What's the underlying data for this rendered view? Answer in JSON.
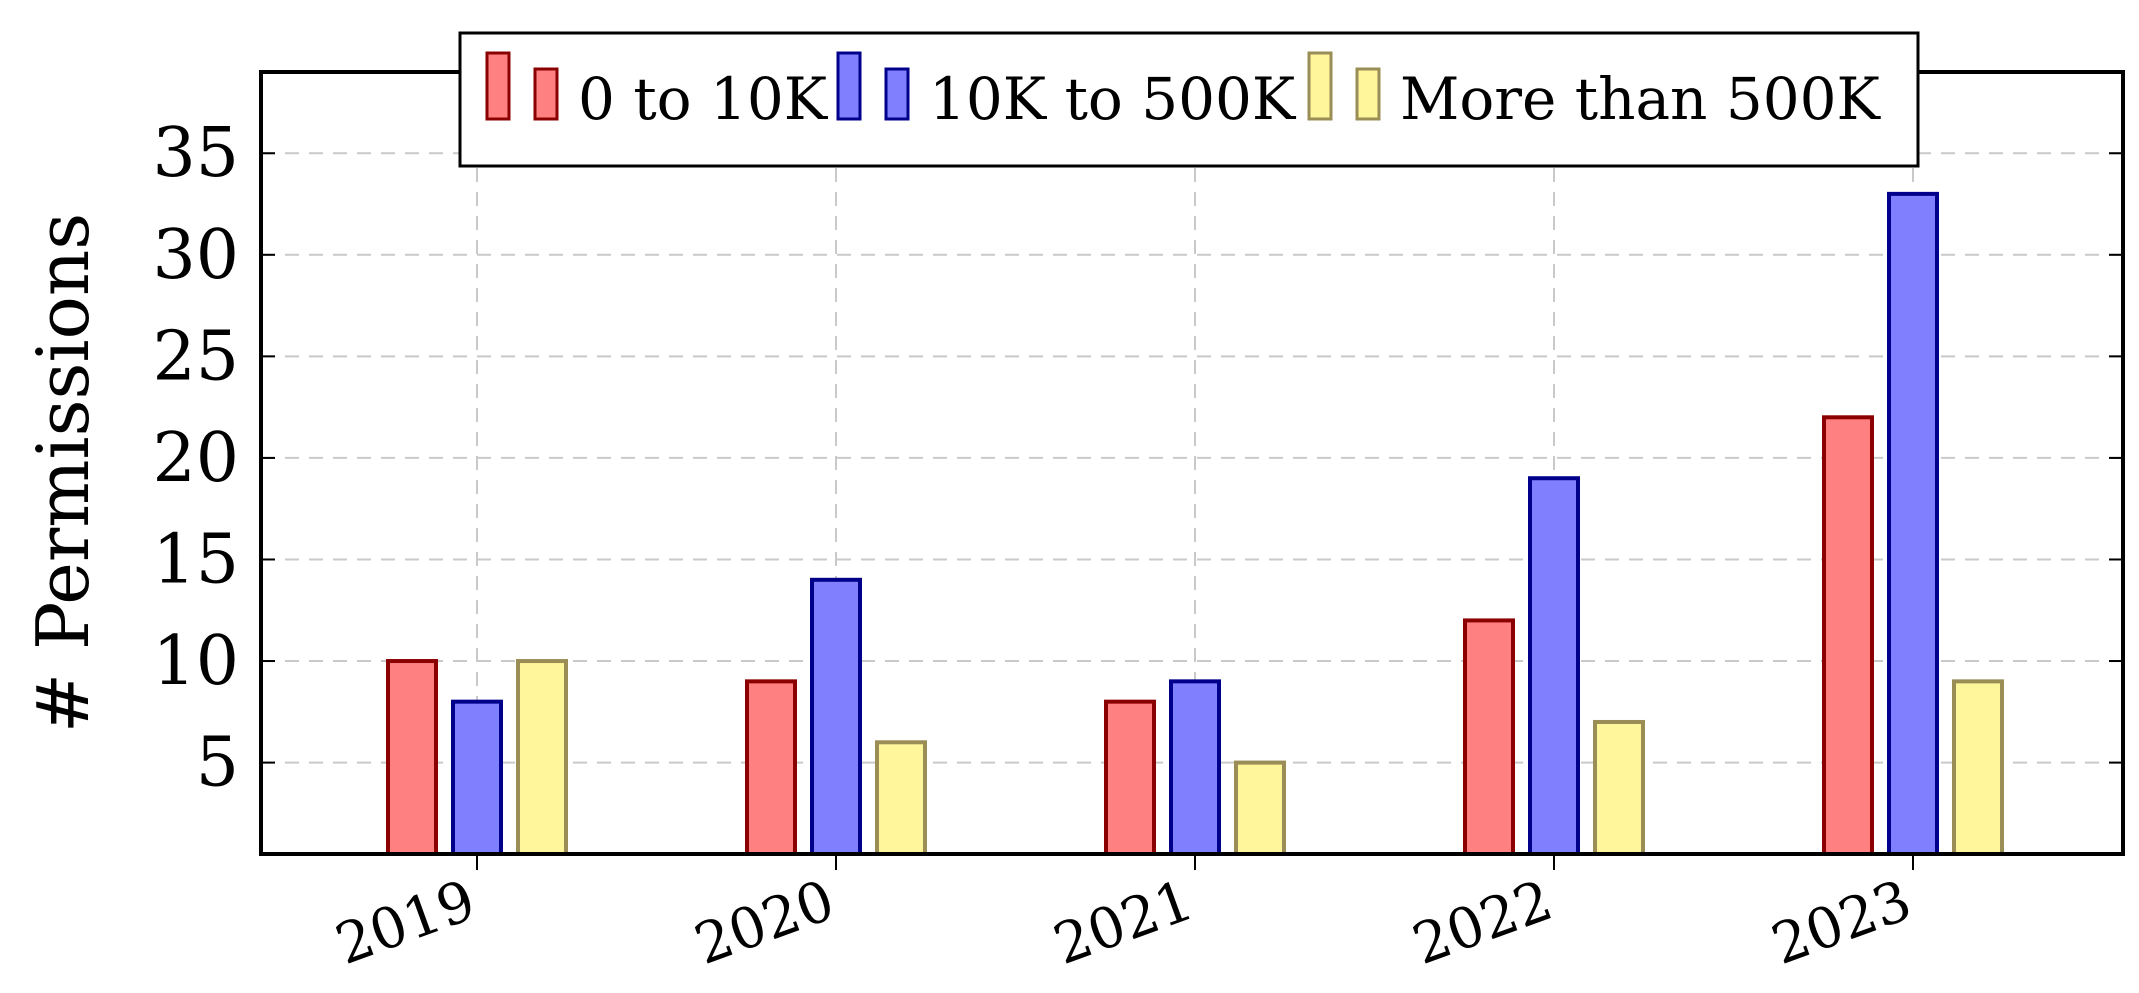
{
  "chart_data": {
    "type": "bar",
    "title": "",
    "xlabel": "",
    "ylabel": "# Permissions",
    "categories": [
      "2019",
      "2020",
      "2021",
      "2022",
      "2023"
    ],
    "series": [
      {
        "name": "0 to 10K",
        "values": [
          10,
          9,
          8,
          12,
          22
        ],
        "fill": "#ff8080",
        "stroke": "#8b0000"
      },
      {
        "name": "10K to 500K",
        "values": [
          8,
          14,
          9,
          19,
          33
        ],
        "fill": "#8080ff",
        "stroke": "#00008b"
      },
      {
        "name": "More than 500K",
        "values": [
          10,
          6,
          5,
          7,
          9
        ],
        "fill": "#fff59a",
        "stroke": "#9a8d55"
      }
    ],
    "ylim": [
      0.5,
      39
    ],
    "yticks": [
      "5",
      "10",
      "15",
      "20",
      "25",
      "30",
      "35"
    ],
    "grid": true,
    "legend_position": "top-center"
  }
}
